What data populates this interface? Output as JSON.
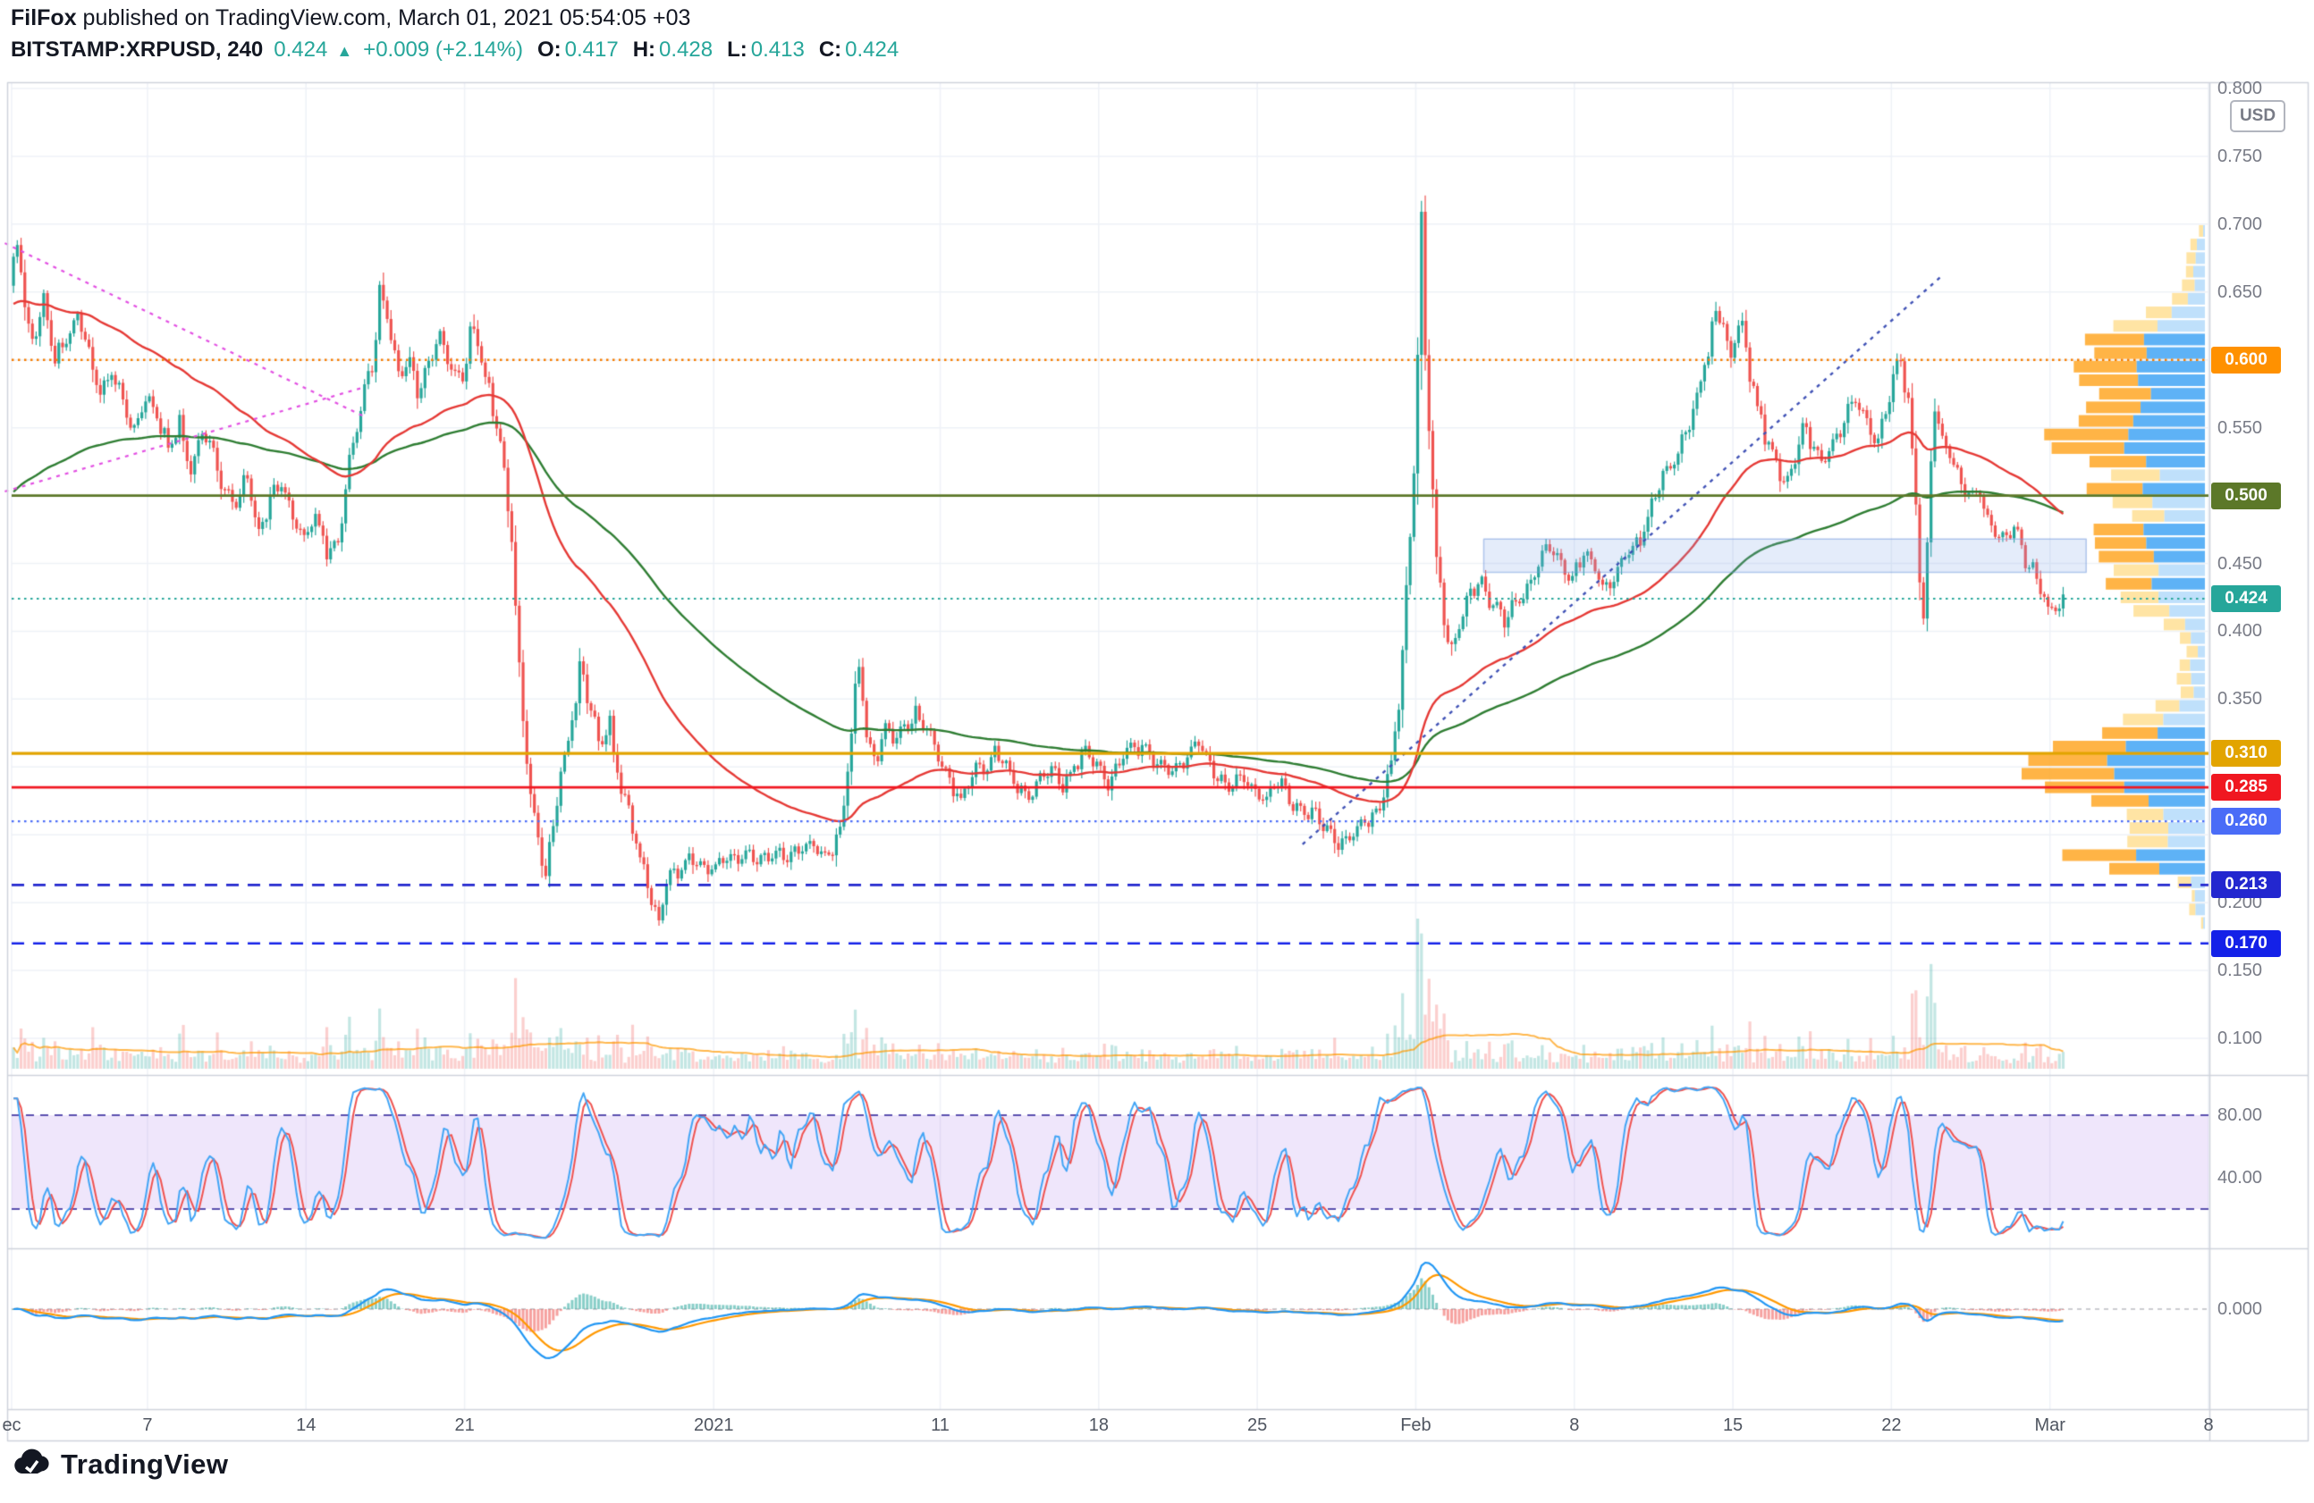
{
  "header": {
    "author": "FilFox",
    "published": " published on TradingView.com, March 01, 2021 05:54:05 +03",
    "symbol": "BITSTAMP:XRPUSD, 240",
    "last": "0.424",
    "arrow": "▲",
    "change": "+0.009 (+2.14%)",
    "ohlc": [
      {
        "label": "O:",
        "value": "0.417"
      },
      {
        "label": "H:",
        "value": "0.428"
      },
      {
        "label": "L:",
        "value": "0.413"
      },
      {
        "label": "C:",
        "value": "0.424"
      }
    ]
  },
  "axis": {
    "currency": "USD",
    "price_ticks": [
      {
        "label": "0.800",
        "price": 0.8
      },
      {
        "label": "0.750",
        "price": 0.75
      },
      {
        "label": "0.700",
        "price": 0.7
      },
      {
        "label": "0.650",
        "price": 0.65
      },
      {
        "label": "0.550",
        "price": 0.55
      },
      {
        "label": "0.450",
        "price": 0.45
      },
      {
        "label": "0.400",
        "price": 0.4
      },
      {
        "label": "0.350",
        "price": 0.35
      },
      {
        "label": "0.200",
        "price": 0.2
      },
      {
        "label": "0.150",
        "price": 0.15
      },
      {
        "label": "0.100",
        "price": 0.1
      }
    ],
    "time_labels": [
      {
        "label": "ec",
        "day": 0
      },
      {
        "label": "7",
        "day": 6
      },
      {
        "label": "14",
        "day": 13
      },
      {
        "label": "21",
        "day": 20
      },
      {
        "label": "2021",
        "day": 31
      },
      {
        "label": "11",
        "day": 41
      },
      {
        "label": "18",
        "day": 48
      },
      {
        "label": "25",
        "day": 55
      },
      {
        "label": "Feb",
        "day": 62
      },
      {
        "label": "8",
        "day": 69
      },
      {
        "label": "15",
        "day": 76
      },
      {
        "label": "22",
        "day": 83
      },
      {
        "label": "Mar",
        "day": 90
      },
      {
        "label": "8",
        "day": 97
      }
    ]
  },
  "panels": {
    "stoch": {
      "ticks": [
        {
          "label": "80.00",
          "value": 80
        },
        {
          "label": "40.00",
          "value": 40
        }
      ],
      "band": [
        20,
        80
      ]
    },
    "macd": {
      "ticks": [
        {
          "label": "0.000",
          "value": 0
        }
      ]
    }
  },
  "footer": {
    "brand": "TradingView"
  },
  "chart_data": {
    "type": "candlestick",
    "exchange": "BITSTAMP",
    "ticker": "XRPUSD",
    "interval": "240",
    "last_ohlc": {
      "open": 0.417,
      "high": 0.428,
      "low": 0.413,
      "close": 0.424,
      "change": "+0.009 (+2.14%)"
    },
    "ylim": [
      0.08,
      0.82
    ],
    "x_range_days": [
      0,
      97.5
    ],
    "levels": [
      {
        "price": 0.6,
        "label": "0.600",
        "color": "#f57c00",
        "badge_bg": "#ff9100",
        "style": "dotted",
        "width": 2.5
      },
      {
        "price": 0.5,
        "label": "0.500",
        "color": "#5c7829",
        "badge_bg": "#5c7829",
        "style": "solid",
        "width": 2.6
      },
      {
        "price": 0.424,
        "label": "0.424",
        "color": "#26a69a",
        "badge_bg": "#26a69a",
        "style": "dotted",
        "width": 1.8
      },
      {
        "price": 0.31,
        "label": "0.310",
        "color": "#e2a400",
        "badge_bg": "#e2a400",
        "style": "solid",
        "width": 3.2
      },
      {
        "price": 0.285,
        "label": "0.285",
        "color": "#f01720",
        "badge_bg": "#f01720",
        "style": "solid",
        "width": 2.6
      },
      {
        "price": 0.26,
        "label": "0.260",
        "color": "#4a6cf7",
        "badge_bg": "#4a6cf7",
        "style": "dotted",
        "width": 2.2
      },
      {
        "price": 0.213,
        "label": "0.213",
        "color": "#2327cf",
        "badge_bg": "#2327cf",
        "style": "dashed",
        "width": 2.6
      },
      {
        "price": 0.17,
        "label": "0.170",
        "color": "#1421e8",
        "badge_bg": "#1421e8",
        "style": "dashed",
        "width": 2.6
      }
    ],
    "trendlines": [
      {
        "d1": -0.3,
        "p1": 0.686,
        "d2": 15.6,
        "p2": 0.558,
        "color": "#e24fe2",
        "dash": [
          4,
          6
        ],
        "width": 2.2
      },
      {
        "d1": -0.3,
        "p1": 0.503,
        "d2": 15.6,
        "p2": 0.58,
        "color": "#e24fe2",
        "dash": [
          4,
          6
        ],
        "width": 2.2
      },
      {
        "d1": 57.0,
        "p1": 0.243,
        "d2": 85.3,
        "p2": 0.663,
        "color": "#3f51b5",
        "dash": [
          4,
          6
        ],
        "width": 2.4
      }
    ],
    "zone": {
      "d1": 65.0,
      "p1": 0.468,
      "d2": 91.6,
      "p2": 0.4435
    },
    "indicators": {
      "stochastic": {
        "upper_band": 80,
        "lower_band": 20
      },
      "macd_like": {
        "zero_label": "0.000"
      },
      "volume": true,
      "volume_profile": {
        "range": [
          0.17,
          0.7
        ],
        "poc": 0.285
      },
      "moving_averages": [
        "red",
        "green"
      ]
    },
    "price_path": [
      [
        0,
        0.655
      ],
      [
        0.35,
        0.682
      ],
      [
        0.7,
        0.64
      ],
      [
        1,
        0.615
      ],
      [
        1.5,
        0.64
      ],
      [
        2,
        0.6
      ],
      [
        2.5,
        0.618
      ],
      [
        3,
        0.635
      ],
      [
        3.5,
        0.6
      ],
      [
        4,
        0.578
      ],
      [
        4.5,
        0.592
      ],
      [
        5,
        0.565
      ],
      [
        5.5,
        0.548
      ],
      [
        6,
        0.578
      ],
      [
        6.5,
        0.556
      ],
      [
        7,
        0.532
      ],
      [
        7.5,
        0.556
      ],
      [
        8,
        0.52
      ],
      [
        8.5,
        0.545
      ],
      [
        9,
        0.535
      ],
      [
        9.5,
        0.506
      ],
      [
        10,
        0.49
      ],
      [
        10.5,
        0.512
      ],
      [
        11,
        0.476
      ],
      [
        11.5,
        0.496
      ],
      [
        12,
        0.506
      ],
      [
        12.5,
        0.486
      ],
      [
        13,
        0.47
      ],
      [
        13.5,
        0.482
      ],
      [
        14,
        0.456
      ],
      [
        14.5,
        0.472
      ],
      [
        15,
        0.52
      ],
      [
        15.5,
        0.56
      ],
      [
        16,
        0.602
      ],
      [
        16.4,
        0.656
      ],
      [
        16.8,
        0.616
      ],
      [
        17.2,
        0.586
      ],
      [
        17.6,
        0.606
      ],
      [
        18,
        0.576
      ],
      [
        18.5,
        0.596
      ],
      [
        19,
        0.616
      ],
      [
        19.5,
        0.6
      ],
      [
        20,
        0.582
      ],
      [
        20.4,
        0.626
      ],
      [
        20.8,
        0.602
      ],
      [
        21.2,
        0.576
      ],
      [
        21.6,
        0.55
      ],
      [
        21.9,
        0.512
      ],
      [
        22.2,
        0.452
      ],
      [
        22.5,
        0.382
      ],
      [
        22.8,
        0.312
      ],
      [
        23.1,
        0.272
      ],
      [
        23.4,
        0.242
      ],
      [
        23.7,
        0.218
      ],
      [
        24,
        0.262
      ],
      [
        24.4,
        0.302
      ],
      [
        24.8,
        0.332
      ],
      [
        25.2,
        0.372
      ],
      [
        25.5,
        0.346
      ],
      [
        26,
        0.322
      ],
      [
        26.5,
        0.332
      ],
      [
        27,
        0.282
      ],
      [
        27.5,
        0.256
      ],
      [
        28,
        0.226
      ],
      [
        28.4,
        0.196
      ],
      [
        28.7,
        0.178
      ],
      [
        29,
        0.212
      ],
      [
        29.5,
        0.226
      ],
      [
        30,
        0.236
      ],
      [
        30.5,
        0.222
      ],
      [
        31,
        0.226
      ],
      [
        31.5,
        0.236
      ],
      [
        32,
        0.229
      ],
      [
        33,
        0.237
      ],
      [
        34,
        0.231
      ],
      [
        35,
        0.245
      ],
      [
        36,
        0.233
      ],
      [
        36.8,
        0.262
      ],
      [
        37.2,
        0.332
      ],
      [
        37.5,
        0.378
      ],
      [
        37.8,
        0.332
      ],
      [
        38.2,
        0.306
      ],
      [
        38.6,
        0.332
      ],
      [
        39,
        0.316
      ],
      [
        39.5,
        0.332
      ],
      [
        40,
        0.342
      ],
      [
        40.5,
        0.326
      ],
      [
        41,
        0.306
      ],
      [
        41.5,
        0.292
      ],
      [
        42,
        0.276
      ],
      [
        42.5,
        0.292
      ],
      [
        43,
        0.302
      ],
      [
        43.5,
        0.312
      ],
      [
        44,
        0.296
      ],
      [
        44.5,
        0.286
      ],
      [
        45,
        0.281
      ],
      [
        45.5,
        0.292
      ],
      [
        46,
        0.296
      ],
      [
        46.5,
        0.289
      ],
      [
        47,
        0.301
      ],
      [
        47.5,
        0.309
      ],
      [
        48,
        0.301
      ],
      [
        48.5,
        0.291
      ],
      [
        49,
        0.301
      ],
      [
        49.5,
        0.311
      ],
      [
        50,
        0.319
      ],
      [
        50.5,
        0.306
      ],
      [
        51,
        0.296
      ],
      [
        51.5,
        0.301
      ],
      [
        52,
        0.309
      ],
      [
        52.5,
        0.316
      ],
      [
        53,
        0.301
      ],
      [
        53.5,
        0.291
      ],
      [
        54,
        0.284
      ],
      [
        54.5,
        0.291
      ],
      [
        55,
        0.285
      ],
      [
        55.5,
        0.278
      ],
      [
        56,
        0.286
      ],
      [
        56.5,
        0.278
      ],
      [
        57,
        0.271
      ],
      [
        57.5,
        0.263
      ],
      [
        58,
        0.256
      ],
      [
        58.5,
        0.249
      ],
      [
        59,
        0.243
      ],
      [
        59.5,
        0.253
      ],
      [
        60,
        0.263
      ],
      [
        60.5,
        0.272
      ],
      [
        61,
        0.302
      ],
      [
        61.4,
        0.362
      ],
      [
        61.7,
        0.442
      ],
      [
        62,
        0.522
      ],
      [
        62.2,
        0.622
      ],
      [
        62.35,
        0.748
      ],
      [
        62.5,
        0.602
      ],
      [
        62.7,
        0.522
      ],
      [
        63,
        0.452
      ],
      [
        63.3,
        0.412
      ],
      [
        63.6,
        0.386
      ],
      [
        64,
        0.406
      ],
      [
        64.5,
        0.426
      ],
      [
        65,
        0.436
      ],
      [
        65.5,
        0.421
      ],
      [
        66,
        0.406
      ],
      [
        66.5,
        0.421
      ],
      [
        67,
        0.436
      ],
      [
        67.5,
        0.451
      ],
      [
        68,
        0.461
      ],
      [
        68.5,
        0.451
      ],
      [
        69,
        0.441
      ],
      [
        69.5,
        0.453
      ],
      [
        70,
        0.446
      ],
      [
        70.5,
        0.433
      ],
      [
        71,
        0.441
      ],
      [
        71.5,
        0.456
      ],
      [
        72,
        0.471
      ],
      [
        72.5,
        0.491
      ],
      [
        73,
        0.511
      ],
      [
        73.5,
        0.526
      ],
      [
        74,
        0.548
      ],
      [
        74.5,
        0.571
      ],
      [
        75,
        0.606
      ],
      [
        75.3,
        0.646
      ],
      [
        75.7,
        0.626
      ],
      [
        76,
        0.601
      ],
      [
        76.4,
        0.629
      ],
      [
        76.8,
        0.596
      ],
      [
        77.2,
        0.566
      ],
      [
        77.6,
        0.541
      ],
      [
        78,
        0.521
      ],
      [
        78.4,
        0.506
      ],
      [
        78.8,
        0.531
      ],
      [
        79.2,
        0.551
      ],
      [
        79.6,
        0.536
      ],
      [
        80,
        0.521
      ],
      [
        80.5,
        0.541
      ],
      [
        81,
        0.556
      ],
      [
        81.5,
        0.571
      ],
      [
        82,
        0.556
      ],
      [
        82.4,
        0.541
      ],
      [
        82.8,
        0.556
      ],
      [
        83.2,
        0.581
      ],
      [
        83.5,
        0.601
      ],
      [
        83.8,
        0.571
      ],
      [
        84.05,
        0.521
      ],
      [
        84.3,
        0.456
      ],
      [
        84.5,
        0.416
      ],
      [
        84.75,
        0.501
      ],
      [
        85,
        0.556
      ],
      [
        85.4,
        0.541
      ],
      [
        86,
        0.521
      ],
      [
        86.5,
        0.496
      ],
      [
        87,
        0.501
      ],
      [
        87.5,
        0.481
      ],
      [
        88,
        0.466
      ],
      [
        88.5,
        0.473
      ],
      [
        89,
        0.456
      ],
      [
        89.5,
        0.441
      ],
      [
        90,
        0.412
      ],
      [
        90.4,
        0.419
      ],
      [
        90.7,
        0.424
      ]
    ]
  }
}
